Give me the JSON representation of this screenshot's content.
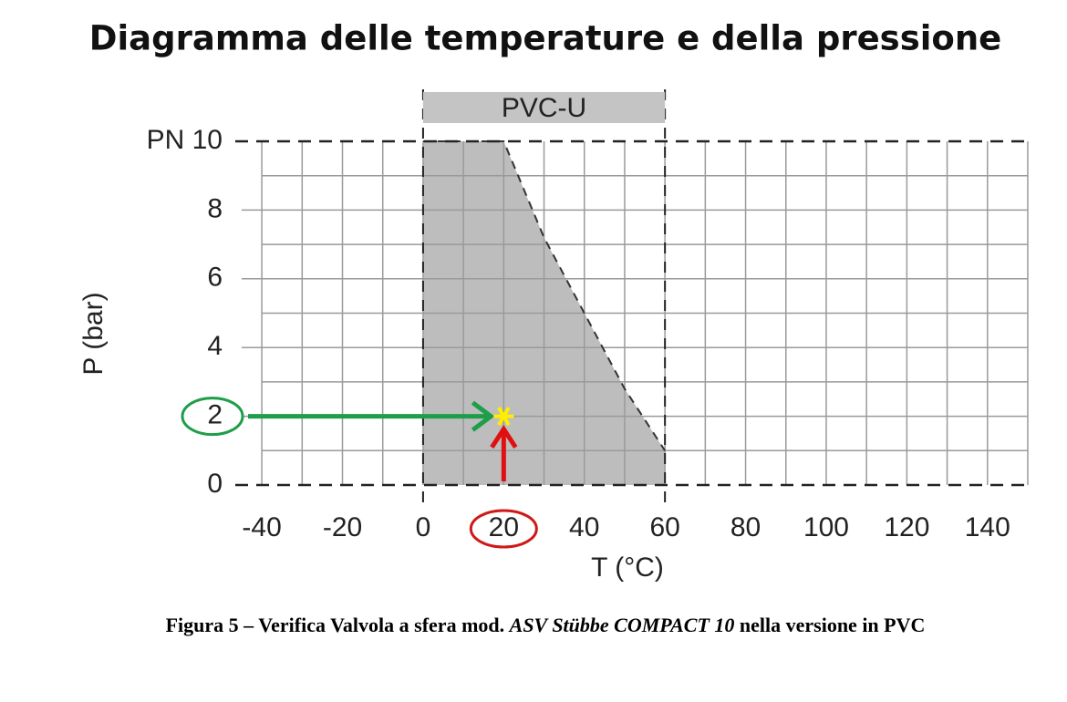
{
  "chart_data": {
    "type": "area",
    "title": "Diagramma delle temperature e della pressione",
    "xlabel": "T (°C)",
    "ylabel": "P (bar)",
    "band_label": "PVC-U",
    "series": [
      {
        "name": "PVC-U",
        "color": "#bdbdbd",
        "x": [
          0,
          20,
          30,
          40,
          50,
          60
        ],
        "values": [
          10,
          10,
          7.2,
          5,
          2.8,
          1
        ]
      }
    ],
    "point": {
      "x": 20,
      "y": 2,
      "color": "#ffee00"
    },
    "xlim": [
      -45,
      150
    ],
    "ylim": [
      0,
      10
    ],
    "xticks": [
      -40,
      -20,
      0,
      20,
      40,
      60,
      80,
      100,
      120,
      140
    ],
    "yticks": [
      0,
      2,
      4,
      6,
      8,
      {
        "value": 10,
        "label": "PN 10"
      }
    ],
    "grid": true
  },
  "caption": [
    "Figura 5 – Verifica Valvola a sfera mod. ",
    "ASV Stübbe COMPACT 10",
    " nella versione in PVC"
  ]
}
